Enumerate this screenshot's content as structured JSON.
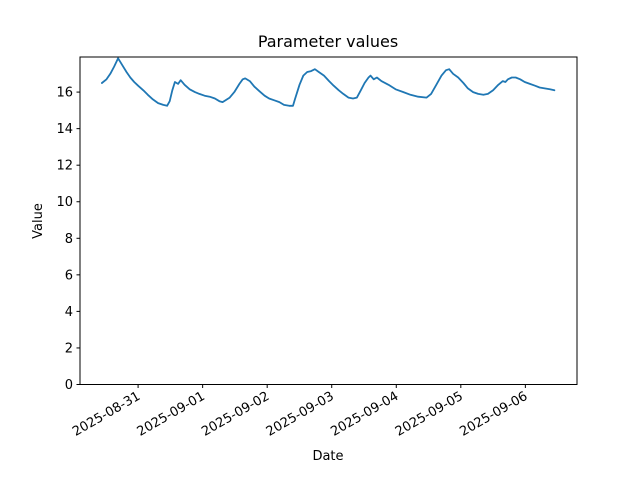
{
  "figure": {
    "background": "#ffffff"
  },
  "chart_data": {
    "type": "line",
    "title": "Parameter values",
    "xlabel": "Date",
    "ylabel": "Value",
    "line_color": "#1f77b4",
    "axis_color": "#000000",
    "grid": false,
    "legend": false,
    "x_unit": "days since 2025-08-31 00:00",
    "xlim_days": [
      -0.9,
      6.8
    ],
    "ylim": [
      0,
      17.92
    ],
    "x_tick_days": [
      0,
      1,
      2,
      3,
      4,
      5,
      6
    ],
    "x_tick_labels": [
      "2025-08-31",
      "2025-09-01",
      "2025-09-02",
      "2025-09-03",
      "2025-09-04",
      "2025-09-05",
      "2025-09-06"
    ],
    "x_tick_rotation_deg": 30,
    "y_ticks": [
      0,
      2,
      4,
      6,
      8,
      10,
      12,
      14,
      16
    ],
    "points": [
      [
        -0.56,
        16.5
      ],
      [
        -0.49,
        16.7
      ],
      [
        -0.43,
        17.0
      ],
      [
        -0.37,
        17.4
      ],
      [
        -0.31,
        17.85
      ],
      [
        -0.25,
        17.5
      ],
      [
        -0.18,
        17.1
      ],
      [
        -0.12,
        16.8
      ],
      [
        -0.06,
        16.55
      ],
      [
        0.0,
        16.35
      ],
      [
        0.08,
        16.1
      ],
      [
        0.15,
        15.85
      ],
      [
        0.23,
        15.6
      ],
      [
        0.31,
        15.4
      ],
      [
        0.39,
        15.3
      ],
      [
        0.45,
        15.25
      ],
      [
        0.49,
        15.5
      ],
      [
        0.53,
        16.1
      ],
      [
        0.57,
        16.55
      ],
      [
        0.62,
        16.45
      ],
      [
        0.66,
        16.65
      ],
      [
        0.72,
        16.4
      ],
      [
        0.8,
        16.15
      ],
      [
        0.88,
        16.0
      ],
      [
        0.95,
        15.9
      ],
      [
        1.03,
        15.8
      ],
      [
        1.11,
        15.75
      ],
      [
        1.19,
        15.65
      ],
      [
        1.26,
        15.5
      ],
      [
        1.31,
        15.45
      ],
      [
        1.42,
        15.7
      ],
      [
        1.49,
        16.0
      ],
      [
        1.57,
        16.45
      ],
      [
        1.62,
        16.7
      ],
      [
        1.66,
        16.75
      ],
      [
        1.73,
        16.6
      ],
      [
        1.8,
        16.3
      ],
      [
        1.88,
        16.05
      ],
      [
        1.96,
        15.8
      ],
      [
        2.03,
        15.65
      ],
      [
        2.11,
        15.55
      ],
      [
        2.19,
        15.45
      ],
      [
        2.26,
        15.3
      ],
      [
        2.34,
        15.25
      ],
      [
        2.4,
        15.25
      ],
      [
        2.43,
        15.6
      ],
      [
        2.5,
        16.4
      ],
      [
        2.56,
        16.9
      ],
      [
        2.62,
        17.1
      ],
      [
        2.68,
        17.15
      ],
      [
        2.74,
        17.25
      ],
      [
        2.8,
        17.1
      ],
      [
        2.88,
        16.9
      ],
      [
        2.96,
        16.6
      ],
      [
        3.03,
        16.35
      ],
      [
        3.11,
        16.1
      ],
      [
        3.18,
        15.9
      ],
      [
        3.26,
        15.7
      ],
      [
        3.33,
        15.65
      ],
      [
        3.39,
        15.7
      ],
      [
        3.45,
        16.1
      ],
      [
        3.51,
        16.5
      ],
      [
        3.57,
        16.8
      ],
      [
        3.6,
        16.9
      ],
      [
        3.65,
        16.7
      ],
      [
        3.7,
        16.8
      ],
      [
        3.77,
        16.6
      ],
      [
        3.88,
        16.4
      ],
      [
        3.99,
        16.15
      ],
      [
        4.11,
        16.0
      ],
      [
        4.22,
        15.85
      ],
      [
        4.34,
        15.75
      ],
      [
        4.47,
        15.7
      ],
      [
        4.54,
        15.9
      ],
      [
        4.62,
        16.4
      ],
      [
        4.7,
        16.9
      ],
      [
        4.77,
        17.2
      ],
      [
        4.82,
        17.25
      ],
      [
        4.88,
        17.0
      ],
      [
        4.96,
        16.8
      ],
      [
        5.04,
        16.5
      ],
      [
        5.11,
        16.2
      ],
      [
        5.19,
        16.0
      ],
      [
        5.27,
        15.9
      ],
      [
        5.35,
        15.85
      ],
      [
        5.42,
        15.9
      ],
      [
        5.5,
        16.1
      ],
      [
        5.58,
        16.4
      ],
      [
        5.65,
        16.6
      ],
      [
        5.69,
        16.55
      ],
      [
        5.73,
        16.7
      ],
      [
        5.79,
        16.8
      ],
      [
        5.85,
        16.8
      ],
      [
        5.92,
        16.7
      ],
      [
        5.99,
        16.55
      ],
      [
        6.07,
        16.45
      ],
      [
        6.15,
        16.35
      ],
      [
        6.22,
        16.25
      ],
      [
        6.3,
        16.2
      ],
      [
        6.38,
        16.15
      ],
      [
        6.45,
        16.1
      ]
    ]
  }
}
